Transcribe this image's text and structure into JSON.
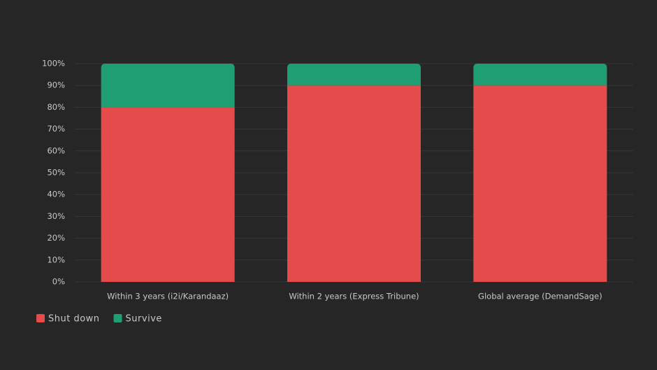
{
  "chart_data": {
    "type": "stacked_bar",
    "categories": [
      "Within 3 years (i2i/Karandaaz)",
      "Within 2 years (Express Tribune)",
      "Global average (DemandSage)"
    ],
    "series": [
      {
        "name": "Shut down",
        "color": "#e54b4b",
        "values": [
          80,
          90,
          90
        ]
      },
      {
        "name": "Survive",
        "color": "#1f9e74",
        "values": [
          20,
          10,
          10
        ]
      }
    ],
    "ylim": [
      0,
      100
    ],
    "yticks": [
      {
        "value": 0,
        "label": "0%"
      },
      {
        "value": 10,
        "label": "10%"
      },
      {
        "value": 20,
        "label": "20%"
      },
      {
        "value": 30,
        "label": "30%"
      },
      {
        "value": 40,
        "label": "40%"
      },
      {
        "value": 50,
        "label": "50%"
      },
      {
        "value": 60,
        "label": "60%"
      },
      {
        "value": 70,
        "label": "70%"
      },
      {
        "value": 80,
        "label": "80%"
      },
      {
        "value": 90,
        "label": "90%"
      },
      {
        "value": 100,
        "label": "100%"
      }
    ],
    "grid": true,
    "legend": "bottom-left"
  }
}
